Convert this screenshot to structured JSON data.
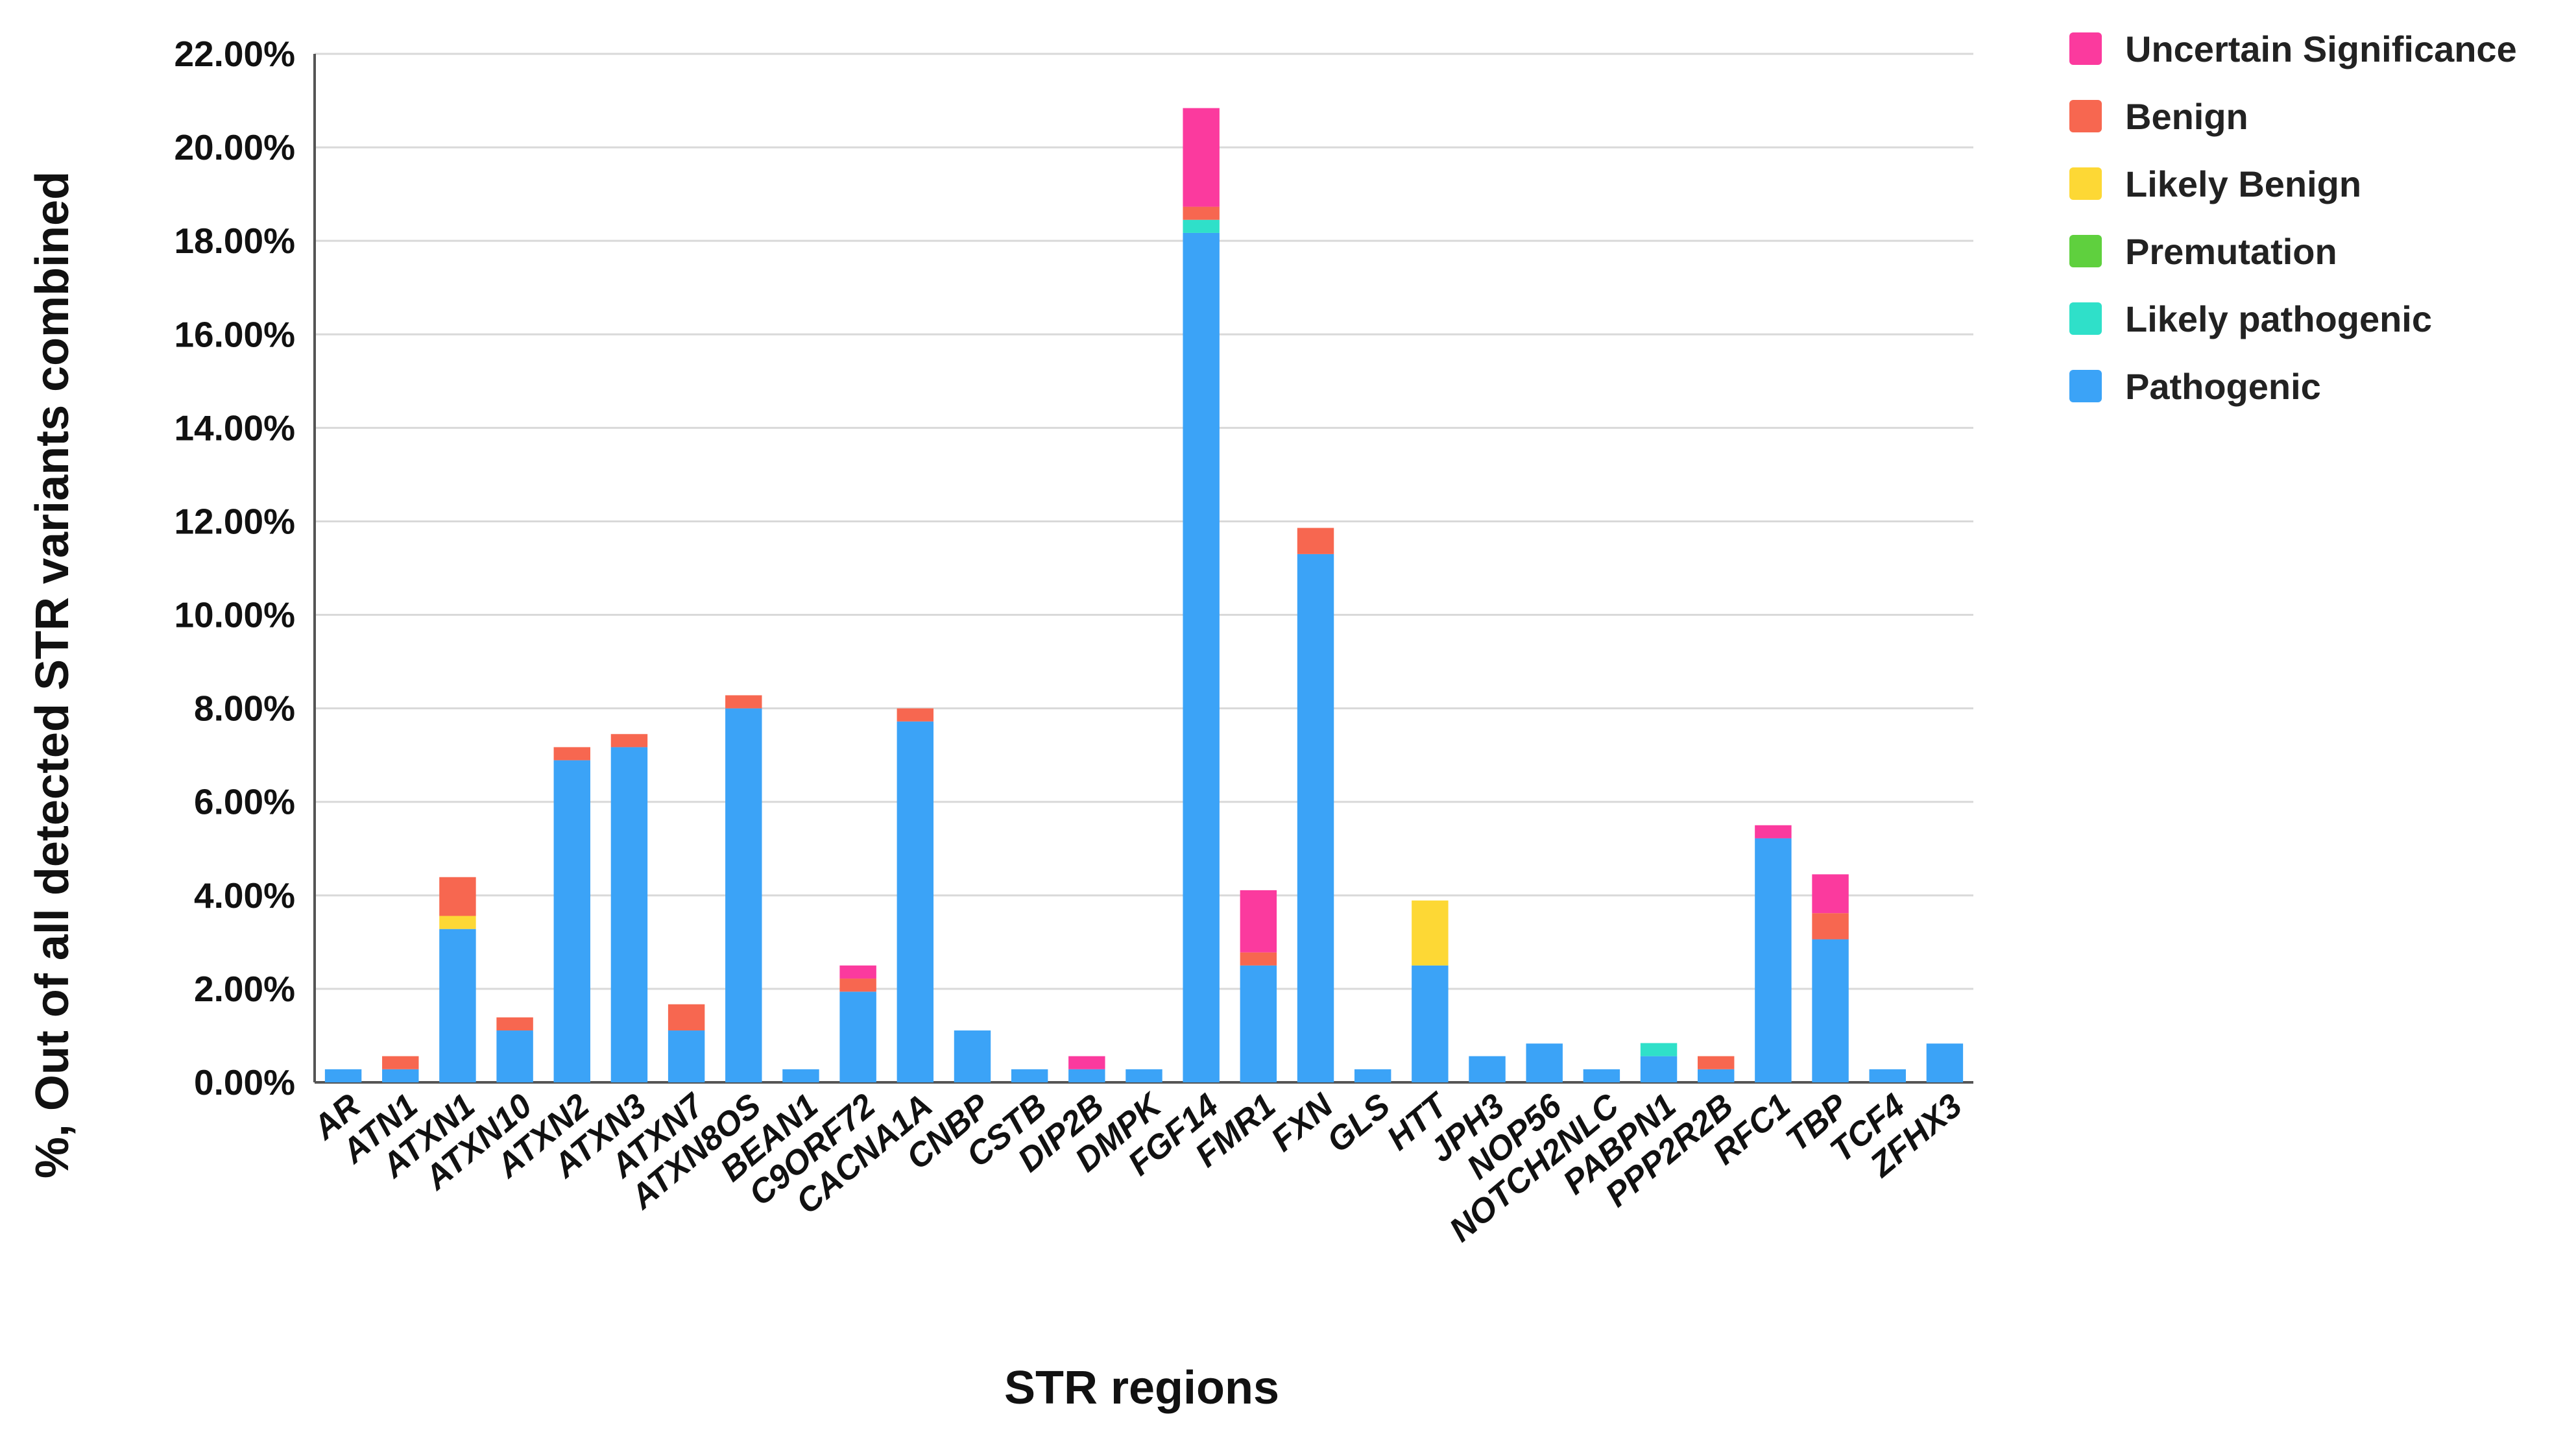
{
  "chart_data": {
    "type": "bar",
    "stacked": true,
    "title": "",
    "xlabel": "STR regions",
    "ylabel": "%, Out of all detected STR variants combined",
    "ylim": [
      0,
      22
    ],
    "ytick_values": [
      0,
      2,
      4,
      6,
      8,
      10,
      12,
      14,
      16,
      18,
      20,
      22
    ],
    "ytick_labels": [
      "0.00%",
      "2.00%",
      "4.00%",
      "6.00%",
      "8.00%",
      "10.00%",
      "12.00%",
      "14.00%",
      "16.00%",
      "18.00%",
      "20.00%",
      "22.00%"
    ],
    "grid": true,
    "legend_position": "top-right",
    "categories": [
      "AR",
      "ATN1",
      "ATXN1",
      "ATXN10",
      "ATXN2",
      "ATXN3",
      "ATXN7",
      "ATXN8OS",
      "BEAN1",
      "C9ORF72",
      "CACNA1A",
      "CNBP",
      "CSTB",
      "DIP2B",
      "DMPK",
      "FGF14",
      "FMR1",
      "FXN",
      "GLS",
      "HTT",
      "JPH3",
      "NOP56",
      "NOTCH2NLC",
      "PABPN1",
      "PPP2R2B",
      "RFC1",
      "TBP",
      "TCF4",
      "ZFHX3"
    ],
    "series": [
      {
        "name": "Pathogenic",
        "color": "#3BA3F7",
        "values": [
          0.28,
          0.28,
          3.28,
          1.11,
          6.89,
          7.17,
          1.11,
          8.0,
          0.28,
          1.94,
          7.72,
          1.11,
          0.28,
          0.28,
          0.28,
          18.17,
          2.5,
          11.3,
          0.28,
          2.5,
          0.56,
          0.83,
          0.28,
          0.56,
          0.28,
          5.22,
          3.06,
          0.28,
          0.83
        ]
      },
      {
        "name": "Likely pathogenic",
        "color": "#2FE0C9",
        "values": [
          0,
          0,
          0,
          0,
          0,
          0,
          0,
          0,
          0,
          0,
          0,
          0,
          0,
          0,
          0,
          0.28,
          0,
          0,
          0,
          0,
          0,
          0,
          0,
          0.28,
          0,
          0,
          0,
          0,
          0
        ]
      },
      {
        "name": "Premutation",
        "color": "#5FD03E",
        "values": [
          0,
          0,
          0,
          0,
          0,
          0,
          0,
          0,
          0,
          0,
          0,
          0,
          0,
          0,
          0,
          0,
          0,
          0,
          0,
          0,
          0,
          0,
          0,
          0,
          0,
          0,
          0,
          0,
          0
        ]
      },
      {
        "name": "Likely Benign",
        "color": "#FDD835",
        "values": [
          0,
          0,
          0.28,
          0,
          0,
          0,
          0,
          0,
          0,
          0,
          0,
          0,
          0,
          0,
          0,
          0,
          0,
          0,
          0,
          1.39,
          0,
          0,
          0,
          0,
          0,
          0,
          0,
          0,
          0
        ]
      },
      {
        "name": "Benign",
        "color": "#F76750",
        "values": [
          0,
          0.28,
          0.83,
          0.28,
          0.28,
          0.28,
          0.56,
          0.28,
          0,
          0.28,
          0.28,
          0,
          0,
          0,
          0,
          0.28,
          0.28,
          0.56,
          0,
          0,
          0,
          0,
          0,
          0,
          0.28,
          0,
          0.56,
          0,
          0
        ]
      },
      {
        "name": "Uncertain Significance",
        "color": "#FB3A9E",
        "values": [
          0,
          0,
          0,
          0,
          0,
          0,
          0,
          0,
          0,
          0.28,
          0,
          0,
          0,
          0.28,
          0,
          2.11,
          1.33,
          0,
          0,
          0,
          0,
          0,
          0,
          0,
          0,
          0.28,
          0.83,
          0,
          0
        ]
      }
    ],
    "legend_order": [
      "Uncertain Significance",
      "Benign",
      "Likely Benign",
      "Premutation",
      "Likely pathogenic",
      "Pathogenic"
    ]
  },
  "style": {
    "grid_color": "#D9D9D9",
    "axis_color": "#555555"
  }
}
